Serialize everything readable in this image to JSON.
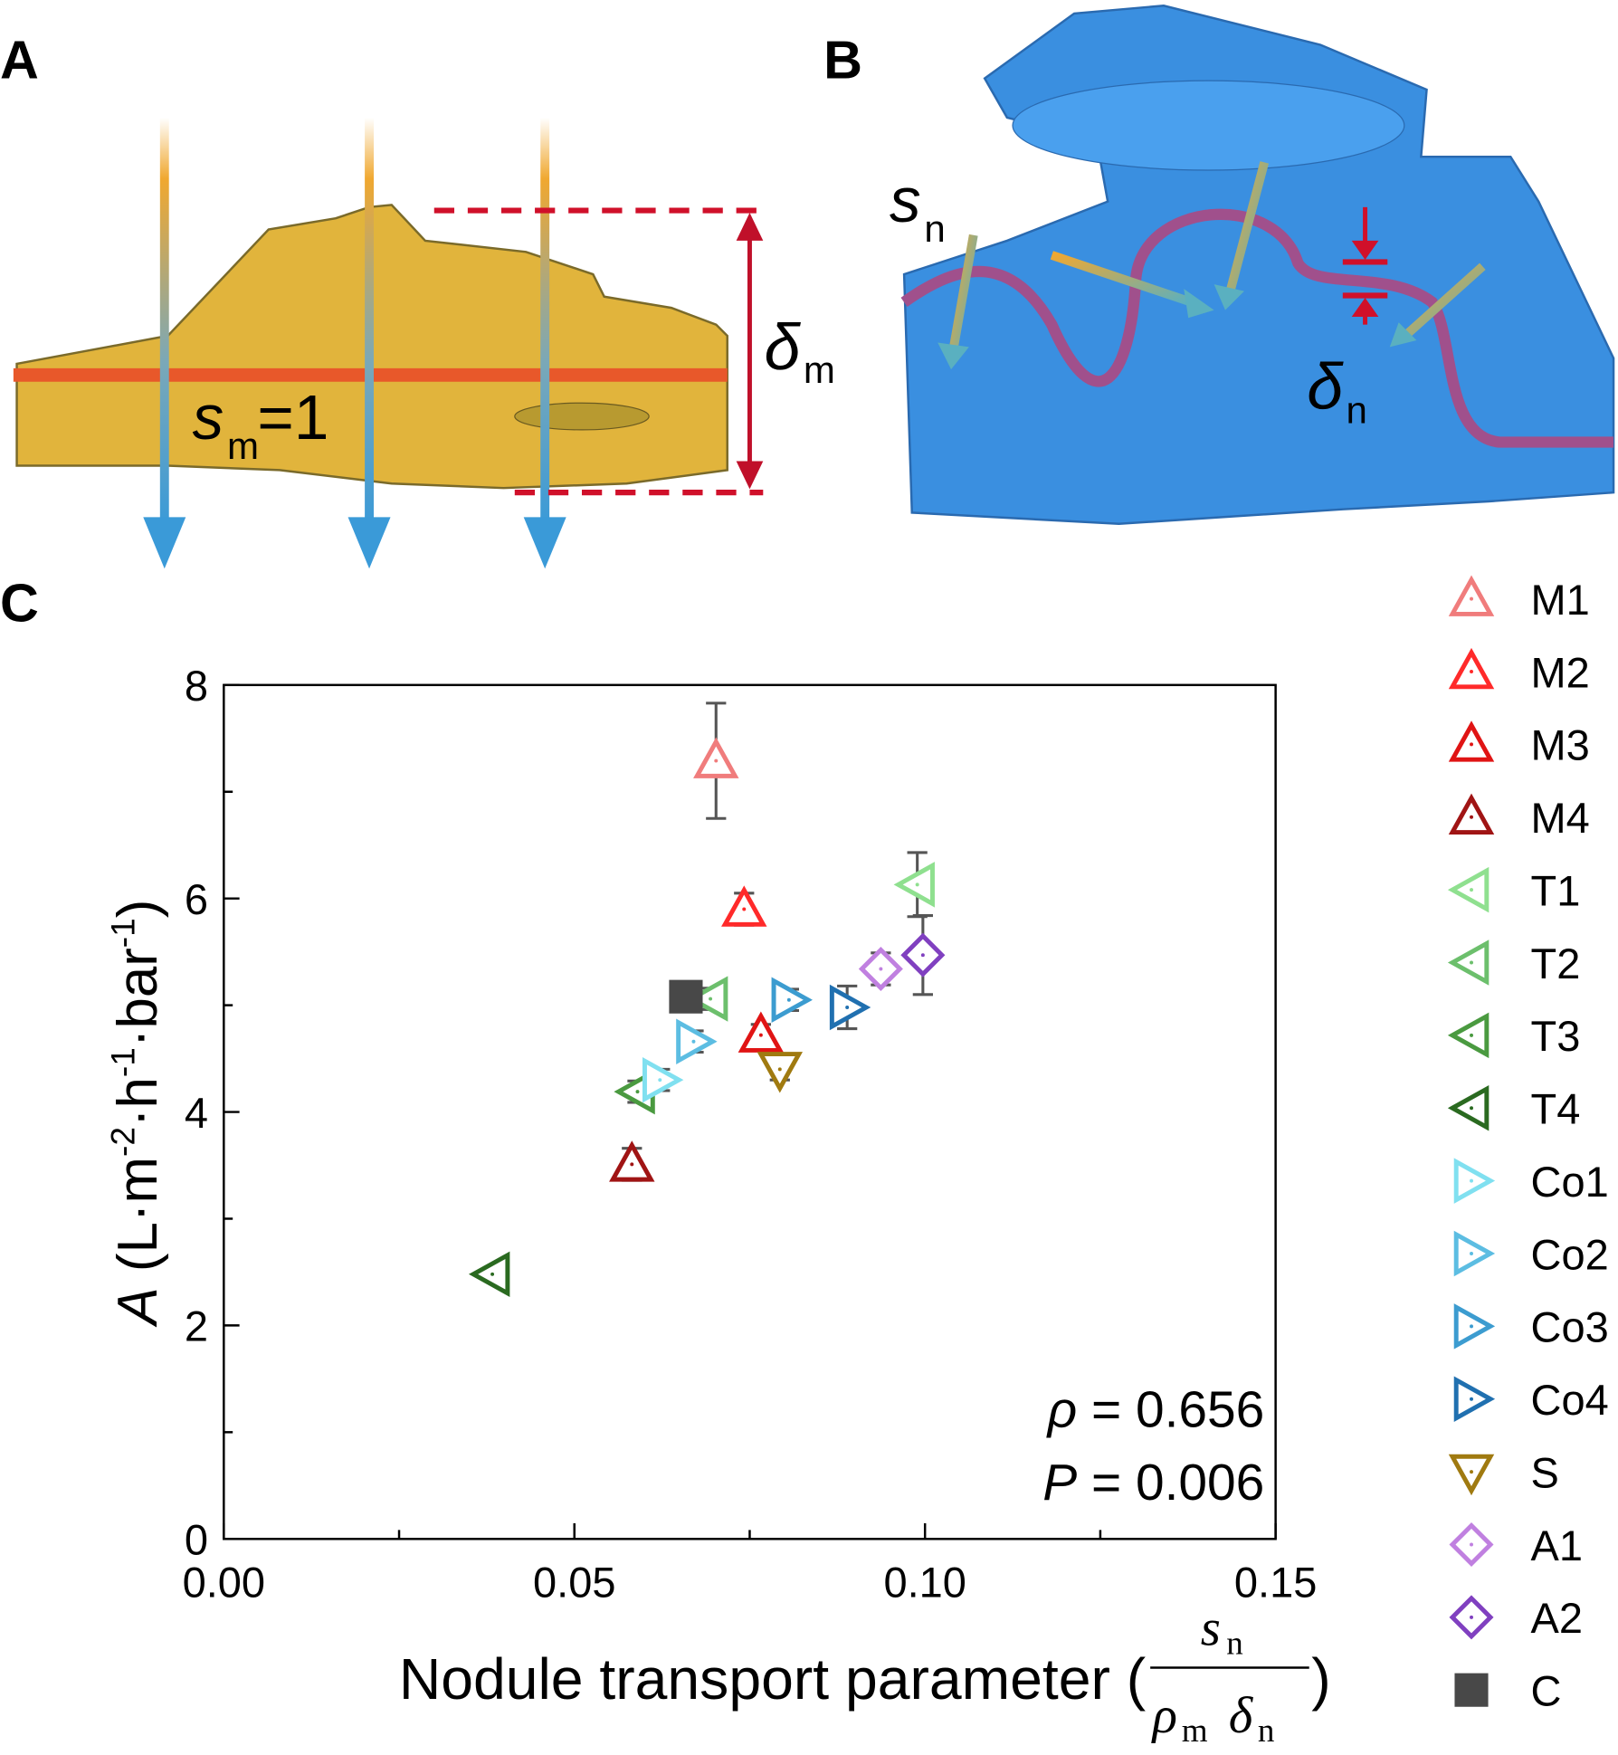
{
  "panels": {
    "A": {
      "label": "A",
      "s": "s",
      "s_sub": "m",
      "s_eq": "=1",
      "delta": "δ",
      "delta_sub": "m"
    },
    "B": {
      "label": "B",
      "s": "s",
      "s_sub": "n",
      "delta": "δ",
      "delta_sub": "n"
    }
  },
  "chart_data": {
    "type": "scatter",
    "panel_label": "C",
    "xlabel": {
      "text": "Nodule transport parameter (",
      "num": "s",
      "num_sub": "n",
      "den1": "ρ",
      "den1_sub": "m",
      "den2": "δ",
      "den2_sub": "n",
      "close": ")"
    },
    "ylabel": {
      "symbol": "A",
      "parts": [
        " (L·m",
        "-2",
        "·h",
        "-1",
        "·bar",
        "-1",
        ")"
      ]
    },
    "xlim": [
      0,
      0.15
    ],
    "ylim": [
      0,
      8
    ],
    "xticks": [
      {
        "value": 0,
        "label": "0.00"
      },
      0.05,
      {
        "value": 0.1,
        "label": "0.10"
      },
      0.15
    ],
    "yticks": [
      0,
      2,
      4,
      6,
      8
    ],
    "xminorticks": [
      0.025,
      0.075,
      0.125
    ],
    "yminorticks": [
      1,
      3,
      5,
      7
    ],
    "annotations": [
      {
        "symbol": "ρ",
        "text": " = 0.656"
      },
      {
        "symbol": "P",
        "text": " = 0.006"
      }
    ],
    "legend": "right",
    "series": [
      {
        "name": "M1",
        "color": "#f07c7c",
        "marker": "triangle-up",
        "x": [
          0.0702
        ],
        "values": [
          7.29
        ],
        "errors": [
          0.54
        ]
      },
      {
        "name": "M2",
        "color": "#ff2a2a",
        "marker": "triangle-up",
        "x": [
          0.0742
        ],
        "values": [
          5.9
        ],
        "errors": [
          0.15
        ]
      },
      {
        "name": "M3",
        "color": "#e01414",
        "marker": "triangle-up",
        "x": [
          0.0766
        ],
        "values": [
          4.72
        ],
        "errors": [
          0.1
        ]
      },
      {
        "name": "M4",
        "color": "#a01414",
        "marker": "triangle-up",
        "x": [
          0.0582
        ],
        "values": [
          3.51
        ],
        "errors": [
          0.15
        ]
      },
      {
        "name": "T1",
        "color": "#8fe08f",
        "marker": "triangle-left",
        "x": [
          0.0989
        ],
        "values": [
          6.13
        ],
        "errors": [
          0.3
        ]
      },
      {
        "name": "T2",
        "color": "#6cbf6c",
        "marker": "triangle-left",
        "x": [
          0.0694
        ],
        "values": [
          5.06
        ],
        "errors": [
          0.1
        ]
      },
      {
        "name": "T3",
        "color": "#4a9a40",
        "marker": "triangle-left",
        "x": [
          0.059
        ],
        "values": [
          4.19
        ],
        "errors": [
          0.1
        ]
      },
      {
        "name": "T4",
        "color": "#2a6a20",
        "marker": "triangle-left",
        "x": [
          0.0383
        ],
        "values": [
          2.48
        ],
        "errors": [
          0.05
        ]
      },
      {
        "name": "Co1",
        "color": "#80e0f0",
        "marker": "triangle-right",
        "x": [
          0.0622
        ],
        "values": [
          4.3
        ],
        "errors": [
          0.1
        ]
      },
      {
        "name": "Co2",
        "color": "#5cbde2",
        "marker": "triangle-right",
        "x": [
          0.067
        ],
        "values": [
          4.66
        ],
        "errors": [
          0.1
        ]
      },
      {
        "name": "Co3",
        "color": "#3c9cd0",
        "marker": "triangle-right",
        "x": [
          0.0806
        ],
        "values": [
          5.05
        ],
        "errors": [
          0.1
        ]
      },
      {
        "name": "Co4",
        "color": "#2070b0",
        "marker": "triangle-right",
        "x": [
          0.0889
        ],
        "values": [
          4.98
        ],
        "errors": [
          0.2
        ]
      },
      {
        "name": "S",
        "color": "#a07a10",
        "marker": "triangle-down",
        "x": [
          0.0793
        ],
        "values": [
          4.4
        ],
        "errors": [
          0.1
        ]
      },
      {
        "name": "A1",
        "color": "#c080e0",
        "marker": "diamond",
        "x": [
          0.0937
        ],
        "values": [
          5.34
        ],
        "errors": [
          0.15
        ]
      },
      {
        "name": "A2",
        "color": "#8040c0",
        "marker": "diamond",
        "x": [
          0.0997
        ],
        "values": [
          5.47
        ],
        "errors": [
          0.37
        ]
      },
      {
        "name": "C",
        "color": "#484848",
        "marker": "square",
        "x": [
          0.0659
        ],
        "values": [
          5.08
        ]
      }
    ]
  }
}
